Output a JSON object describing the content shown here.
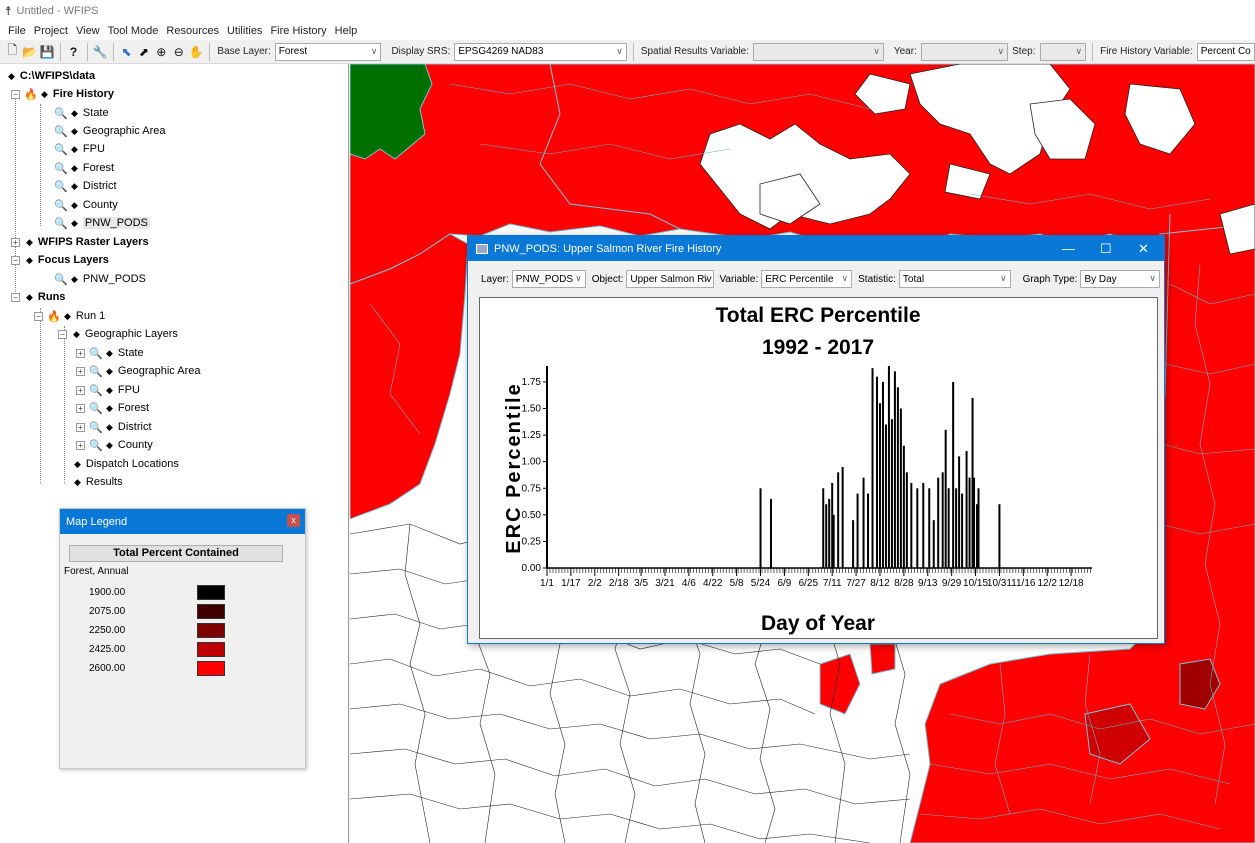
{
  "window": {
    "title": "Untitled - WFIPS"
  },
  "menu": [
    "File",
    "Project",
    "View",
    "Tool Mode",
    "Resources",
    "Utilities",
    "Fire History",
    "Help"
  ],
  "toolbar": {
    "base_layer_label": "Base Layer:",
    "base_layer_value": "Forest",
    "srs_label": "Display SRS:",
    "srs_value": "EPSG4269 NAD83",
    "spatial_label": "Spatial Results Variable:",
    "year_label": "Year:",
    "step_label": "Step:",
    "fire_var_label": "Fire History Variable:",
    "fire_var_value": "Percent Co"
  },
  "tree": {
    "root": "C:\\WFIPS\\data",
    "fire_history": "Fire History",
    "fh_items": [
      "State",
      "Geographic Area",
      "FPU",
      "Forest",
      "District",
      "County",
      "PNW_PODS"
    ],
    "raster": "WFIPS Raster Layers",
    "focus": "Focus Layers",
    "focus_items": [
      "PNW_PODS"
    ],
    "runs": "Runs",
    "run1": "Run 1",
    "geo_layers": "Geographic Layers",
    "geo_items": [
      "State",
      "Geographic Area",
      "FPU",
      "Forest",
      "District",
      "County"
    ],
    "dispatch": "Dispatch Locations",
    "results": "Results"
  },
  "legend": {
    "title": "Map Legend",
    "close": "x",
    "header": "Total Percent Contained",
    "subtitle": "Forest, Annual",
    "entries": [
      {
        "value": "1900.00",
        "color": "#000000"
      },
      {
        "value": "2075.00",
        "color": "#400000"
      },
      {
        "value": "2250.00",
        "color": "#7f0000"
      },
      {
        "value": "2425.00",
        "color": "#bf0000"
      },
      {
        "value": "2600.00",
        "color": "#ff0000"
      }
    ]
  },
  "chart_window": {
    "title": "PNW_PODS: Upper Salmon River Fire History",
    "layer_label": "Layer:",
    "layer_value": "PNW_PODS",
    "object_label": "Object:",
    "object_value": "Upper Salmon Riv",
    "variable_label": "Variable:",
    "variable_value": "ERC Percentile",
    "statistic_label": "Statistic:",
    "statistic_value": "Total",
    "graph_type_label": "Graph Type:",
    "graph_type_value": "By Day"
  },
  "chart_data": {
    "type": "bar",
    "title": "Total ERC Percentile",
    "subtitle": "1992 - 2017",
    "xlabel": "Day of Year",
    "ylabel": "ERC Percentile",
    "ylim": [
      0,
      1.9
    ],
    "xlim": [
      1,
      366
    ],
    "y_ticks": [
      "0.00",
      "0.25",
      "0.50",
      "0.75",
      "1.00",
      "1.25",
      "1.50",
      "1.75"
    ],
    "x_ticks": [
      {
        "label": "1/1",
        "day": 1
      },
      {
        "label": "1/17",
        "day": 17
      },
      {
        "label": "2/2",
        "day": 33
      },
      {
        "label": "2/18",
        "day": 49
      },
      {
        "label": "3/5",
        "day": 64
      },
      {
        "label": "3/21",
        "day": 80
      },
      {
        "label": "4/6",
        "day": 96
      },
      {
        "label": "4/22",
        "day": 112
      },
      {
        "label": "5/8",
        "day": 128
      },
      {
        "label": "5/24",
        "day": 144
      },
      {
        "label": "6/9",
        "day": 160
      },
      {
        "label": "6/25",
        "day": 176
      },
      {
        "label": "7/11",
        "day": 192
      },
      {
        "label": "7/27",
        "day": 208
      },
      {
        "label": "8/12",
        "day": 224
      },
      {
        "label": "8/28",
        "day": 240
      },
      {
        "label": "9/13",
        "day": 256
      },
      {
        "label": "9/29",
        "day": 272
      },
      {
        "label": "10/15",
        "day": 288
      },
      {
        "label": "10/31",
        "day": 304
      },
      {
        "label": "11/16",
        "day": 320
      },
      {
        "label": "12/2",
        "day": 336
      },
      {
        "label": "12/18",
        "day": 352
      }
    ],
    "series": [
      {
        "values": [
          [
            1,
            1.9
          ],
          [
            144,
            0.75
          ],
          [
            151,
            0.65
          ],
          [
            186,
            0.75
          ],
          [
            188,
            0.6
          ],
          [
            190,
            0.65
          ],
          [
            192,
            0.8
          ],
          [
            193,
            0.5
          ],
          [
            196,
            0.9
          ],
          [
            199,
            0.95
          ],
          [
            206,
            0.45
          ],
          [
            209,
            0.7
          ],
          [
            213,
            0.85
          ],
          [
            216,
            0.7
          ],
          [
            219,
            1.88
          ],
          [
            222,
            1.8
          ],
          [
            224,
            1.55
          ],
          [
            226,
            1.75
          ],
          [
            228,
            1.35
          ],
          [
            230,
            1.9
          ],
          [
            232,
            1.4
          ],
          [
            234,
            1.85
          ],
          [
            236,
            1.7
          ],
          [
            238,
            1.5
          ],
          [
            240,
            1.15
          ],
          [
            242,
            0.9
          ],
          [
            245,
            0.8
          ],
          [
            249,
            0.75
          ],
          [
            253,
            0.8
          ],
          [
            257,
            0.75
          ],
          [
            260,
            0.45
          ],
          [
            263,
            0.85
          ],
          [
            266,
            0.9
          ],
          [
            268,
            1.3
          ],
          [
            270,
            0.75
          ],
          [
            273,
            1.75
          ],
          [
            275,
            0.75
          ],
          [
            277,
            1.05
          ],
          [
            279,
            0.7
          ],
          [
            282,
            1.1
          ],
          [
            284,
            0.85
          ],
          [
            286,
            1.6
          ],
          [
            287,
            0.85
          ],
          [
            289,
            0.6
          ],
          [
            290,
            0.75
          ],
          [
            304,
            0.6
          ]
        ]
      }
    ]
  }
}
